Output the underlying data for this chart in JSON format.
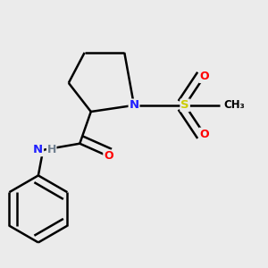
{
  "background_color": "#ebebeb",
  "atom_colors": {
    "N": "#2020ff",
    "O": "#ff0000",
    "S": "#cccc00",
    "C": "#000000",
    "H": "#708090"
  },
  "bond_color": "#000000",
  "bond_width": 1.8
}
